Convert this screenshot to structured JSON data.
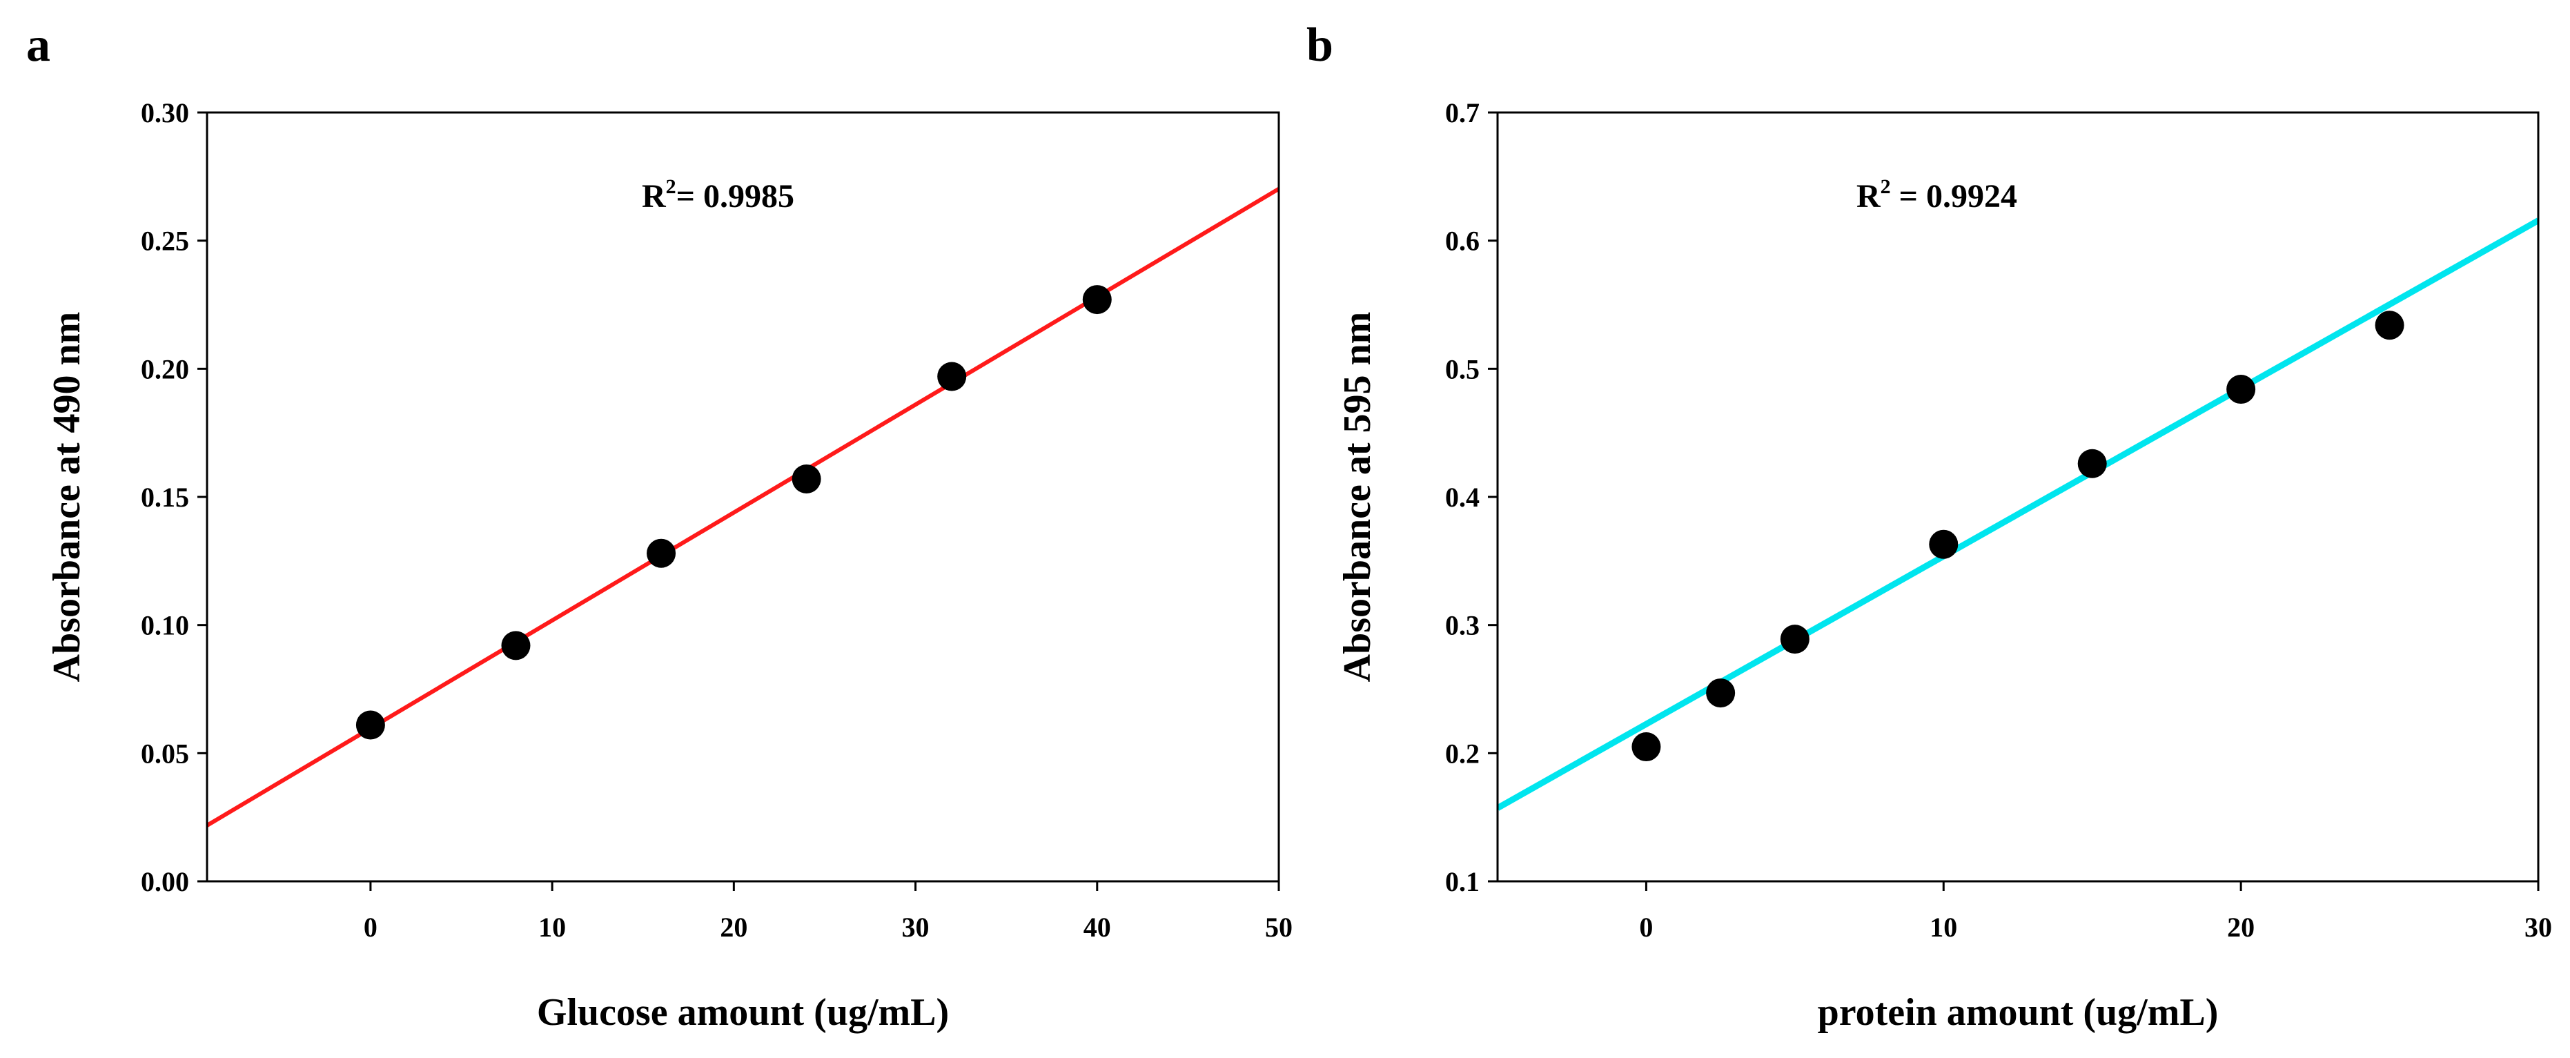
{
  "chart_data": [
    {
      "panel_label": "a",
      "type": "scatter",
      "xlabel": "Glucose amount (ug/mL)",
      "ylabel": "Absorbance at 490 nm",
      "xlim": [
        -9,
        50
      ],
      "ylim": [
        0,
        0.3
      ],
      "xticks": [
        0,
        10,
        20,
        30,
        40,
        50
      ],
      "xtick_labels": [
        "0",
        "10",
        "20",
        "30",
        "40",
        "50"
      ],
      "yticks": [
        0,
        0.05,
        0.1,
        0.15,
        0.2,
        0.25,
        0.3
      ],
      "ytick_labels": [
        "0.00",
        "0.05",
        "0.10",
        "0.15",
        "0.20",
        "0.25",
        "0.30"
      ],
      "x": [
        0,
        8,
        16,
        24,
        32,
        40
      ],
      "y": [
        0.061,
        0.092,
        0.128,
        0.157,
        0.197,
        0.227
      ],
      "fit_line": {
        "slope": 0.00421,
        "intercept": 0.0597,
        "color": "#ff1a1a"
      },
      "annotation": {
        "base": "R",
        "sup": "2",
        "text": "= 0.9985"
      },
      "marker_color": "#000000",
      "grid": false
    },
    {
      "panel_label": "b",
      "type": "scatter",
      "xlabel": "protein amount (ug/mL)",
      "ylabel": "Absorbance at 595 nm",
      "xlim": [
        -5,
        30
      ],
      "ylim": [
        0.1,
        0.7
      ],
      "xticks": [
        0,
        10,
        20,
        30
      ],
      "xtick_labels": [
        "0",
        "10",
        "20",
        "30"
      ],
      "yticks": [
        0.1,
        0.2,
        0.3,
        0.4,
        0.5,
        0.6,
        0.7
      ],
      "ytick_labels": [
        "0.1",
        "0.2",
        "0.3",
        "0.4",
        "0.5",
        "0.6",
        "0.7"
      ],
      "x": [
        0,
        2.5,
        5,
        10,
        15,
        20,
        25
      ],
      "y": [
        0.205,
        0.247,
        0.289,
        0.363,
        0.426,
        0.484,
        0.534
      ],
      "fit_line": {
        "slope": 0.0131,
        "intercept": 0.2227,
        "color": "#00e5ee"
      },
      "annotation": {
        "base": "R",
        "sup": "2",
        "text": " = 0.9924"
      },
      "marker_color": "#000000",
      "grid": false
    }
  ]
}
